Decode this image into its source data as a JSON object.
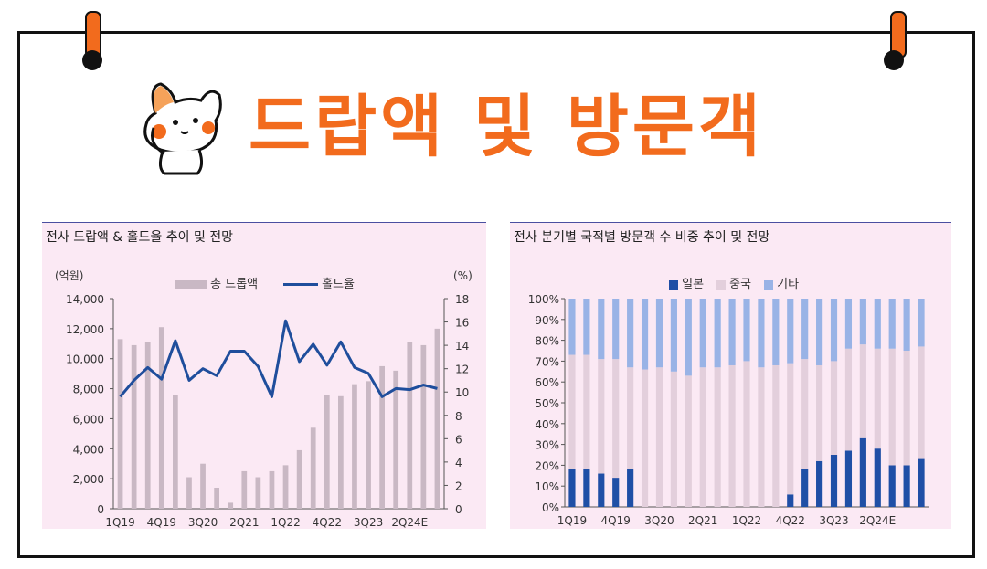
{
  "title": "드랍액 및 방문객",
  "left_panel": {
    "title": "전사 드랍액 & 홀드율 추이 및 전망",
    "unit_left": "(억원)",
    "unit_right": "(%)",
    "legend_bar": "총 드롭액",
    "legend_line": "홀드율"
  },
  "right_panel": {
    "title": "전사 분기별 국적별 방문객 수 비중 추이 및 전망",
    "legend": [
      "일본",
      "중국",
      "기타"
    ]
  },
  "colors": {
    "accent": "#f26b1d",
    "bar": "#c9b8c4",
    "line": "#1f4e9c",
    "japan": "#1f4fa6",
    "china": "#e3cfdc",
    "other": "#99b3e6",
    "panel_bg": "#fbe9f4"
  },
  "chart_data": [
    {
      "type": "bar",
      "title": "전사 드랍액 & 홀드율 추이 및 전망",
      "ylabel": "(억원)",
      "y2label": "(%)",
      "ylim": [
        0,
        14000
      ],
      "y2lim": [
        0,
        18
      ],
      "yticks": [
        "0",
        "2,000",
        "4,000",
        "6,000",
        "8,000",
        "10,000",
        "12,000",
        "14,000"
      ],
      "y2ticks": [
        "0",
        "2",
        "4",
        "6",
        "8",
        "10",
        "12",
        "14",
        "16",
        "18"
      ],
      "xticks": [
        {
          "index": 0,
          "label": "1Q19"
        },
        {
          "index": 3,
          "label": "4Q19"
        },
        {
          "index": 6,
          "label": "3Q20"
        },
        {
          "index": 9,
          "label": "2Q21"
        },
        {
          "index": 12,
          "label": "1Q22"
        },
        {
          "index": 15,
          "label": "4Q22"
        },
        {
          "index": 18,
          "label": "3Q23"
        },
        {
          "index": 21,
          "label": "2Q24E"
        }
      ],
      "series": [
        {
          "name": "총 드롭액",
          "type": "bar",
          "values": [
            11300,
            10900,
            11100,
            12100,
            7600,
            2100,
            3000,
            1400,
            400,
            2500,
            2100,
            2500,
            2900,
            3900,
            5400,
            7600,
            7500,
            8300,
            8500,
            9500,
            9200,
            11100,
            10900,
            12000
          ]
        },
        {
          "name": "홀드율",
          "type": "line",
          "axis": "right",
          "values": [
            9.6,
            11.0,
            12.1,
            11.1,
            14.4,
            11.0,
            12.0,
            11.4,
            13.5,
            13.5,
            12.2,
            9.6,
            16.1,
            12.6,
            14.1,
            12.3,
            14.3,
            12.1,
            11.6,
            9.6,
            10.3,
            10.2,
            10.6,
            10.3
          ]
        }
      ]
    },
    {
      "type": "bar",
      "stacked": true,
      "title": "전사 분기별 국적별 방문객 수 비중 추이 및 전망",
      "ylim": [
        0,
        100
      ],
      "yticks": [
        "0%",
        "10%",
        "20%",
        "30%",
        "40%",
        "50%",
        "60%",
        "70%",
        "80%",
        "90%",
        "100%"
      ],
      "xticks": [
        {
          "index": 0,
          "label": "1Q19"
        },
        {
          "index": 3,
          "label": "4Q19"
        },
        {
          "index": 6,
          "label": "3Q20"
        },
        {
          "index": 9,
          "label": "2Q21"
        },
        {
          "index": 12,
          "label": "1Q22"
        },
        {
          "index": 15,
          "label": "4Q22"
        },
        {
          "index": 18,
          "label": "3Q23"
        },
        {
          "index": 21,
          "label": "2Q24E"
        }
      ],
      "series": [
        {
          "name": "일본",
          "values": [
            18,
            18,
            16,
            14,
            18,
            0,
            0,
            0,
            0,
            0,
            0,
            0,
            0,
            0,
            0,
            6,
            18,
            22,
            25,
            27,
            33,
            28,
            20,
            20,
            23
          ]
        },
        {
          "name": "중국",
          "values": [
            55,
            55,
            55,
            57,
            49,
            66,
            67,
            65,
            63,
            67,
            67,
            68,
            70,
            67,
            68,
            63,
            53,
            46,
            45,
            49,
            45,
            48,
            56,
            55,
            54
          ]
        },
        {
          "name": "기타",
          "values": [
            27,
            27,
            29,
            29,
            33,
            34,
            33,
            35,
            37,
            33,
            33,
            32,
            30,
            33,
            32,
            31,
            29,
            32,
            30,
            24,
            22,
            24,
            24,
            25,
            23
          ]
        }
      ]
    }
  ]
}
